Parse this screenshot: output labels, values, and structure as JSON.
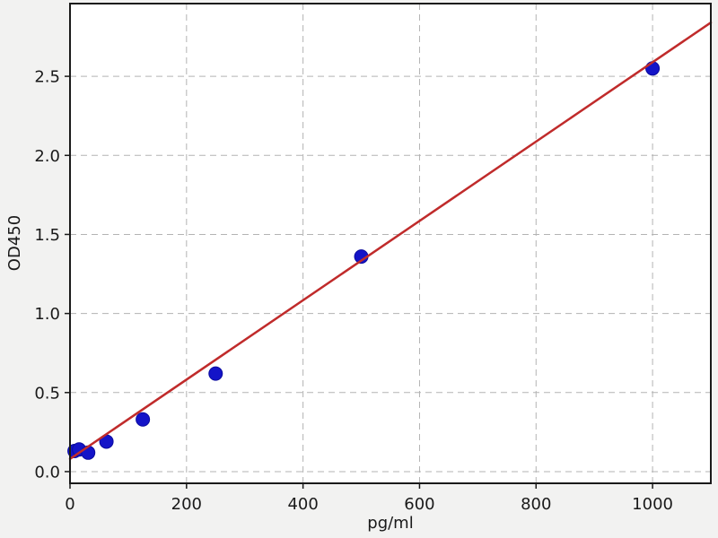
{
  "figure": {
    "background": "#f2f2f1",
    "plot_background": "#ffffff",
    "spine_color": "#1a1a1a",
    "grid_color": "#b3b3b3",
    "tick_color": "#1a1a1a"
  },
  "chart_data": {
    "type": "scatter",
    "title": "",
    "xlabel": "pg/ml",
    "ylabel": "OD450",
    "xlim": [
      0,
      1100
    ],
    "ylim": [
      -0.074,
      2.96
    ],
    "grid": "dashed-major-both",
    "legend_position": "none",
    "x_ticks": [
      {
        "v": 0,
        "label": "0"
      },
      {
        "v": 200,
        "label": "200"
      },
      {
        "v": 400,
        "label": "400"
      },
      {
        "v": 600,
        "label": "600"
      },
      {
        "v": 800,
        "label": "800"
      },
      {
        "v": 1000,
        "label": "1000"
      }
    ],
    "y_ticks": [
      {
        "v": 0.0,
        "label": "0.0"
      },
      {
        "v": 0.5,
        "label": "0.5"
      },
      {
        "v": 1.0,
        "label": "1.0"
      },
      {
        "v": 1.5,
        "label": "1.5"
      },
      {
        "v": 2.0,
        "label": "2.0"
      },
      {
        "v": 2.5,
        "label": "2.5"
      }
    ],
    "series": [
      {
        "name": "standard-points",
        "kind": "scatter",
        "color": "#1414c8",
        "edge_color": "#0b0b9e",
        "marker_radius": 7.5,
        "points": [
          {
            "x": 7.8,
            "y": 0.13
          },
          {
            "x": 15.6,
            "y": 0.14
          },
          {
            "x": 31.2,
            "y": 0.12
          },
          {
            "x": 62.5,
            "y": 0.19
          },
          {
            "x": 125,
            "y": 0.33
          },
          {
            "x": 250,
            "y": 0.62
          },
          {
            "x": 500,
            "y": 1.36
          },
          {
            "x": 1000,
            "y": 2.55
          }
        ]
      },
      {
        "name": "linear-fit-line",
        "kind": "line",
        "color": "#c02b2b",
        "width": 2.5,
        "x1": 0,
        "y1": 0.08,
        "x2": 1100,
        "y2": 2.84
      }
    ]
  }
}
